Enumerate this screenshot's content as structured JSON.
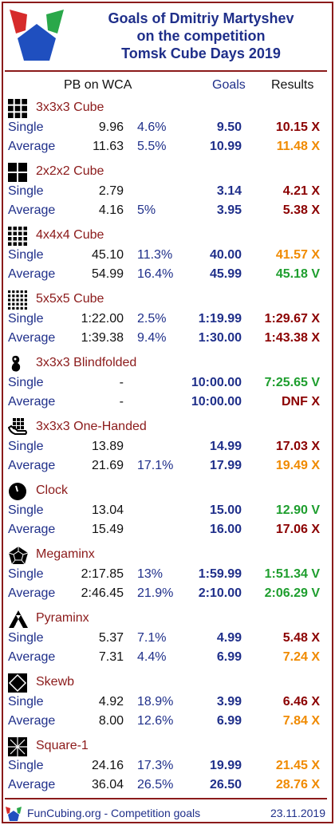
{
  "header": {
    "title_lines": [
      "Goals of Dmitriy Martyshev",
      "on the competition",
      "Tomsk Cube Days 2019"
    ]
  },
  "columns": {
    "pb": "PB on WCA",
    "goals": "Goals",
    "results": "Results"
  },
  "events": [
    {
      "name": "3x3x3 Cube",
      "icon": "cube-3x3-icon",
      "rows": [
        {
          "label": "Single",
          "pb": "9.96",
          "pct": "4.6%",
          "goal": "9.50",
          "result": "10.15 X",
          "color": "#8b0000"
        },
        {
          "label": "Average",
          "pb": "11.63",
          "pct": "5.5%",
          "goal": "10.99",
          "result": "11.48 X",
          "color": "#f08a00"
        }
      ]
    },
    {
      "name": "2x2x2 Cube",
      "icon": "cube-2x2-icon",
      "rows": [
        {
          "label": "Single",
          "pb": "2.79",
          "pct": "",
          "goal": "3.14",
          "result": "4.21 X",
          "color": "#8b0000"
        },
        {
          "label": "Average",
          "pb": "4.16",
          "pct": "5%",
          "goal": "3.95",
          "result": "5.38 X",
          "color": "#8b0000"
        }
      ]
    },
    {
      "name": "4x4x4 Cube",
      "icon": "cube-4x4-icon",
      "rows": [
        {
          "label": "Single",
          "pb": "45.10",
          "pct": "11.3%",
          "goal": "40.00",
          "result": "41.57 X",
          "color": "#f08a00"
        },
        {
          "label": "Average",
          "pb": "54.99",
          "pct": "16.4%",
          "goal": "45.99",
          "result": "45.18 V",
          "color": "#1e9e2e"
        }
      ]
    },
    {
      "name": "5x5x5 Cube",
      "icon": "cube-5x5-icon",
      "rows": [
        {
          "label": "Single",
          "pb": "1:22.00",
          "pct": "2.5%",
          "goal": "1:19.99",
          "result": "1:29.67 X",
          "color": "#8b0000"
        },
        {
          "label": "Average",
          "pb": "1:39.38",
          "pct": "9.4%",
          "goal": "1:30.00",
          "result": "1:43.38 X",
          "color": "#8b0000"
        }
      ]
    },
    {
      "name": "3x3x3 Blindfolded",
      "icon": "blindfold-icon",
      "rows": [
        {
          "label": "Single",
          "pb": "-",
          "pct": "",
          "goal": "10:00.00",
          "result": "7:25.65 V",
          "color": "#1e9e2e"
        },
        {
          "label": "Average",
          "pb": "-",
          "pct": "",
          "goal": "10:00.00",
          "result": "DNF X",
          "color": "#8b0000"
        }
      ]
    },
    {
      "name": "3x3x3 One-Handed",
      "icon": "one-hand-icon",
      "rows": [
        {
          "label": "Single",
          "pb": "13.89",
          "pct": "",
          "goal": "14.99",
          "result": "17.03 X",
          "color": "#8b0000"
        },
        {
          "label": "Average",
          "pb": "21.69",
          "pct": "17.1%",
          "goal": "17.99",
          "result": "19.49 X",
          "color": "#f08a00"
        }
      ]
    },
    {
      "name": "Clock",
      "icon": "clock-icon",
      "rows": [
        {
          "label": "Single",
          "pb": "13.04",
          "pct": "",
          "goal": "15.00",
          "result": "12.90 V",
          "color": "#1e9e2e"
        },
        {
          "label": "Average",
          "pb": "15.49",
          "pct": "",
          "goal": "16.00",
          "result": "17.06 X",
          "color": "#8b0000"
        }
      ]
    },
    {
      "name": "Megaminx",
      "icon": "megaminx-icon",
      "rows": [
        {
          "label": "Single",
          "pb": "2:17.85",
          "pct": "13%",
          "goal": "1:59.99",
          "result": "1:51.34 V",
          "color": "#1e9e2e"
        },
        {
          "label": "Average",
          "pb": "2:46.45",
          "pct": "21.9%",
          "goal": "2:10.00",
          "result": "2:06.29 V",
          "color": "#1e9e2e"
        }
      ]
    },
    {
      "name": "Pyraminx",
      "icon": "pyraminx-icon",
      "rows": [
        {
          "label": "Single",
          "pb": "5.37",
          "pct": "7.1%",
          "goal": "4.99",
          "result": "5.48 X",
          "color": "#8b0000"
        },
        {
          "label": "Average",
          "pb": "7.31",
          "pct": "4.4%",
          "goal": "6.99",
          "result": "7.24 X",
          "color": "#f08a00"
        }
      ]
    },
    {
      "name": "Skewb",
      "icon": "skewb-icon",
      "rows": [
        {
          "label": "Single",
          "pb": "4.92",
          "pct": "18.9%",
          "goal": "3.99",
          "result": "6.46 X",
          "color": "#8b0000"
        },
        {
          "label": "Average",
          "pb": "8.00",
          "pct": "12.6%",
          "goal": "6.99",
          "result": "7.84 X",
          "color": "#f08a00"
        }
      ]
    },
    {
      "name": "Square-1",
      "icon": "square1-icon",
      "rows": [
        {
          "label": "Single",
          "pb": "24.16",
          "pct": "17.3%",
          "goal": "19.99",
          "result": "21.45 X",
          "color": "#f08a00"
        },
        {
          "label": "Average",
          "pb": "36.04",
          "pct": "26.5%",
          "goal": "26.50",
          "result": "28.76 X",
          "color": "#f08a00"
        }
      ]
    }
  ],
  "footer": {
    "text": "FunCubing.org - Competition goals",
    "date": "23.11.2019"
  }
}
